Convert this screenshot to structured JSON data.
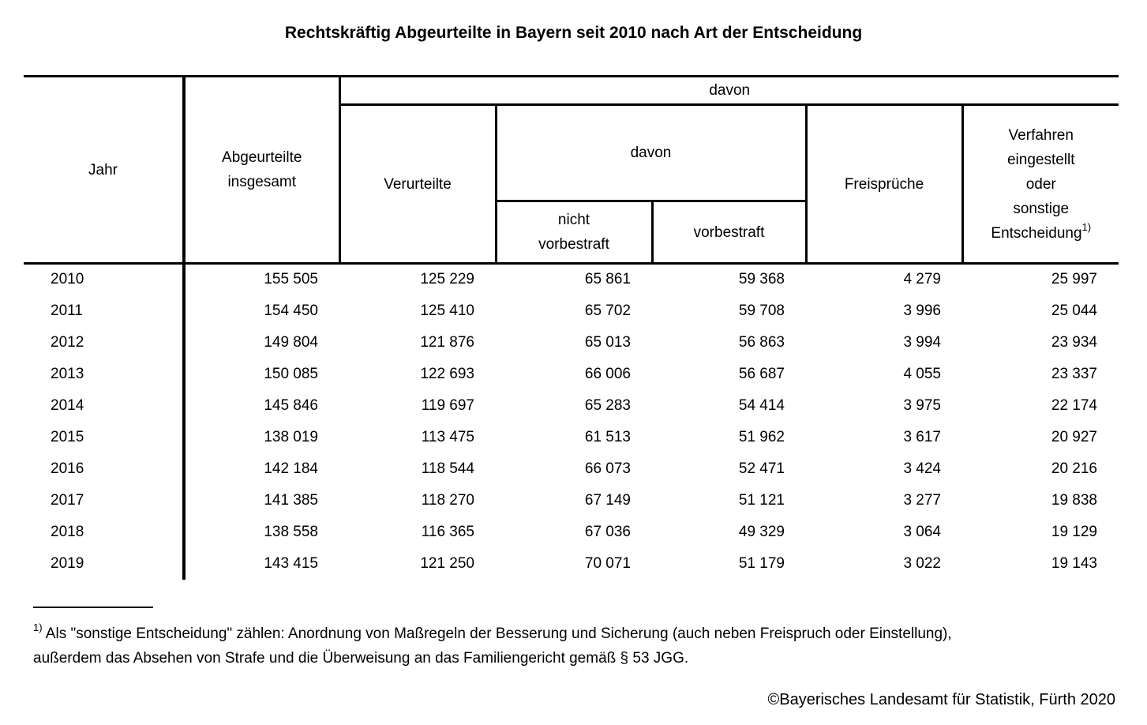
{
  "title": "Rechtskräftig Abgeurteilte in Bayern seit 2010 nach Art der Entscheidung",
  "colors": {
    "text": "#000000",
    "background": "#ffffff",
    "border": "#000000"
  },
  "table": {
    "headers": {
      "jahr": "Jahr",
      "abgeurteilte_insgesamt_lines": [
        "Abgeurteilte",
        "insgesamt"
      ],
      "davon_outer": "davon",
      "verurteilte": "Verurteilte",
      "davon_inner": "davon",
      "nicht_vorbestraft_lines": [
        "nicht",
        "vorbestraft"
      ],
      "vorbestraft": "vorbestraft",
      "freisprueche": "Freisprüche",
      "verfahren_lines": [
        "Verfahren",
        "eingestellt",
        "oder",
        "sonstige",
        "Entscheidung"
      ],
      "verfahren_footnote_marker": "1)"
    },
    "rows": [
      {
        "year": "2010",
        "values": [
          "155 505",
          "125 229",
          "65 861",
          "59 368",
          "4 279",
          "25 997"
        ]
      },
      {
        "year": "2011",
        "values": [
          "154 450",
          "125 410",
          "65 702",
          "59 708",
          "3 996",
          "25 044"
        ]
      },
      {
        "year": "2012",
        "values": [
          "149 804",
          "121 876",
          "65 013",
          "56 863",
          "3 994",
          "23 934"
        ]
      },
      {
        "year": "2013",
        "values": [
          "150 085",
          "122 693",
          "66 006",
          "56 687",
          "4 055",
          "23 337"
        ]
      },
      {
        "year": "2014",
        "values": [
          "145 846",
          "119 697",
          "65 283",
          "54 414",
          "3 975",
          "22 174"
        ]
      },
      {
        "year": "2015",
        "values": [
          "138 019",
          "113 475",
          "61 513",
          "51 962",
          "3 617",
          "20 927"
        ]
      },
      {
        "year": "2016",
        "values": [
          "142 184",
          "118 544",
          "66 073",
          "52 471",
          "3 424",
          "20 216"
        ]
      },
      {
        "year": "2017",
        "values": [
          "141 385",
          "118 270",
          "67 149",
          "51 121",
          "3 277",
          "19 838"
        ]
      },
      {
        "year": "2018",
        "values": [
          "138 558",
          "116 365",
          "67 036",
          "49 329",
          "3 064",
          "19 129"
        ]
      },
      {
        "year": "2019",
        "values": [
          "143 415",
          "121 250",
          "70 071",
          "51 179",
          "3 022",
          "19 143"
        ]
      }
    ]
  },
  "footnote": {
    "marker": "1)",
    "line1": "Als \"sonstige Entscheidung\" zählen: Anordnung von Maßregeln der Besserung und Sicherung (auch neben Freispruch oder Einstellung),",
    "line2": "außerdem das Absehen von Strafe und die Überweisung an das Familiengericht gemäß § 53 JGG."
  },
  "copyright": "©Bayerisches Landesamt für Statistik, Fürth 2020"
}
